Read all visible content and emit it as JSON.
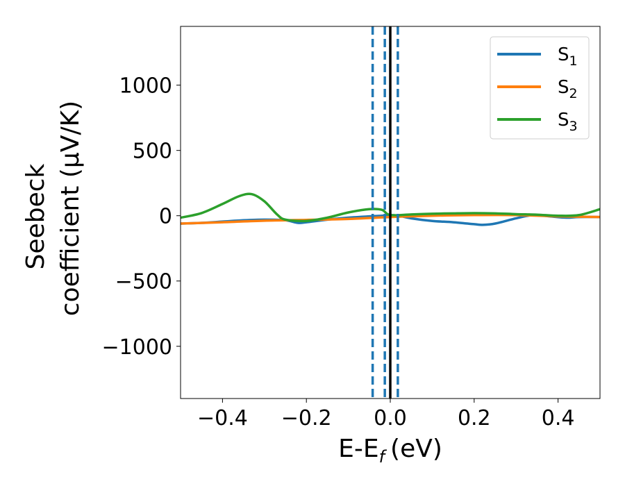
{
  "chart_data": {
    "type": "line",
    "xlabel": "E-E",
    "xlabel_sub": "f",
    "xlabel_unit": "(eV)",
    "ylabel_line1": "Seebeck",
    "ylabel_line2": "coefficient  (μV/K)",
    "xlim": [
      -0.5,
      0.5
    ],
    "ylim": [
      -1400,
      1450
    ],
    "xticks": [
      -0.4,
      -0.2,
      0.0,
      0.2,
      0.4
    ],
    "xtick_labels": [
      "−0.4",
      "−0.2",
      "0.0",
      "0.2",
      "0.4"
    ],
    "yticks": [
      -1000,
      -500,
      0,
      500,
      1000
    ],
    "ytick_labels": [
      "−1000",
      "−500",
      "0",
      "500",
      "1000"
    ],
    "grid": false,
    "legend_position": "top-right",
    "vlines": [
      {
        "x": 0.0,
        "style": "solid",
        "color": "#000000"
      },
      {
        "x": -0.042,
        "style": "dashed",
        "color": "#1f77b4"
      },
      {
        "x": -0.013,
        "style": "dashed",
        "color": "#1f77b4"
      },
      {
        "x": 0.018,
        "style": "dashed",
        "color": "#1f77b4"
      }
    ],
    "series": [
      {
        "name": "S",
        "sub": "1",
        "color": "#1f77b4",
        "x": [
          -0.5,
          -0.45,
          -0.4,
          -0.35,
          -0.3,
          -0.25,
          -0.22,
          -0.2,
          -0.15,
          -0.1,
          -0.05,
          -0.02,
          0.0,
          0.02,
          0.05,
          0.1,
          0.15,
          0.2,
          0.22,
          0.25,
          0.3,
          0.34,
          0.38,
          0.42,
          0.45,
          0.5
        ],
        "y": [
          -60,
          -55,
          -45,
          -35,
          -30,
          -35,
          -55,
          -50,
          -30,
          -15,
          -5,
          0,
          5,
          0,
          -20,
          -40,
          -50,
          -65,
          -70,
          -60,
          -20,
          5,
          -5,
          -15,
          -10,
          -10
        ]
      },
      {
        "name": "S",
        "sub": "2",
        "color": "#ff7f0e",
        "x": [
          -0.5,
          -0.4,
          -0.3,
          -0.2,
          -0.1,
          0.0,
          0.1,
          0.2,
          0.3,
          0.4,
          0.5
        ],
        "y": [
          -60,
          -50,
          -38,
          -32,
          -25,
          -10,
          0,
          5,
          5,
          -5,
          -10
        ]
      },
      {
        "name": "S",
        "sub": "3",
        "color": "#2ca02c",
        "x": [
          -0.5,
          -0.45,
          -0.4,
          -0.36,
          -0.33,
          -0.3,
          -0.27,
          -0.25,
          -0.2,
          -0.15,
          -0.1,
          -0.05,
          -0.02,
          0.0,
          0.05,
          0.1,
          0.15,
          0.2,
          0.25,
          0.3,
          0.35,
          0.4,
          0.45,
          0.5
        ],
        "y": [
          -15,
          20,
          90,
          150,
          165,
          110,
          10,
          -30,
          -40,
          -15,
          25,
          50,
          45,
          5,
          10,
          15,
          18,
          20,
          18,
          12,
          8,
          0,
          5,
          50
        ]
      }
    ]
  }
}
